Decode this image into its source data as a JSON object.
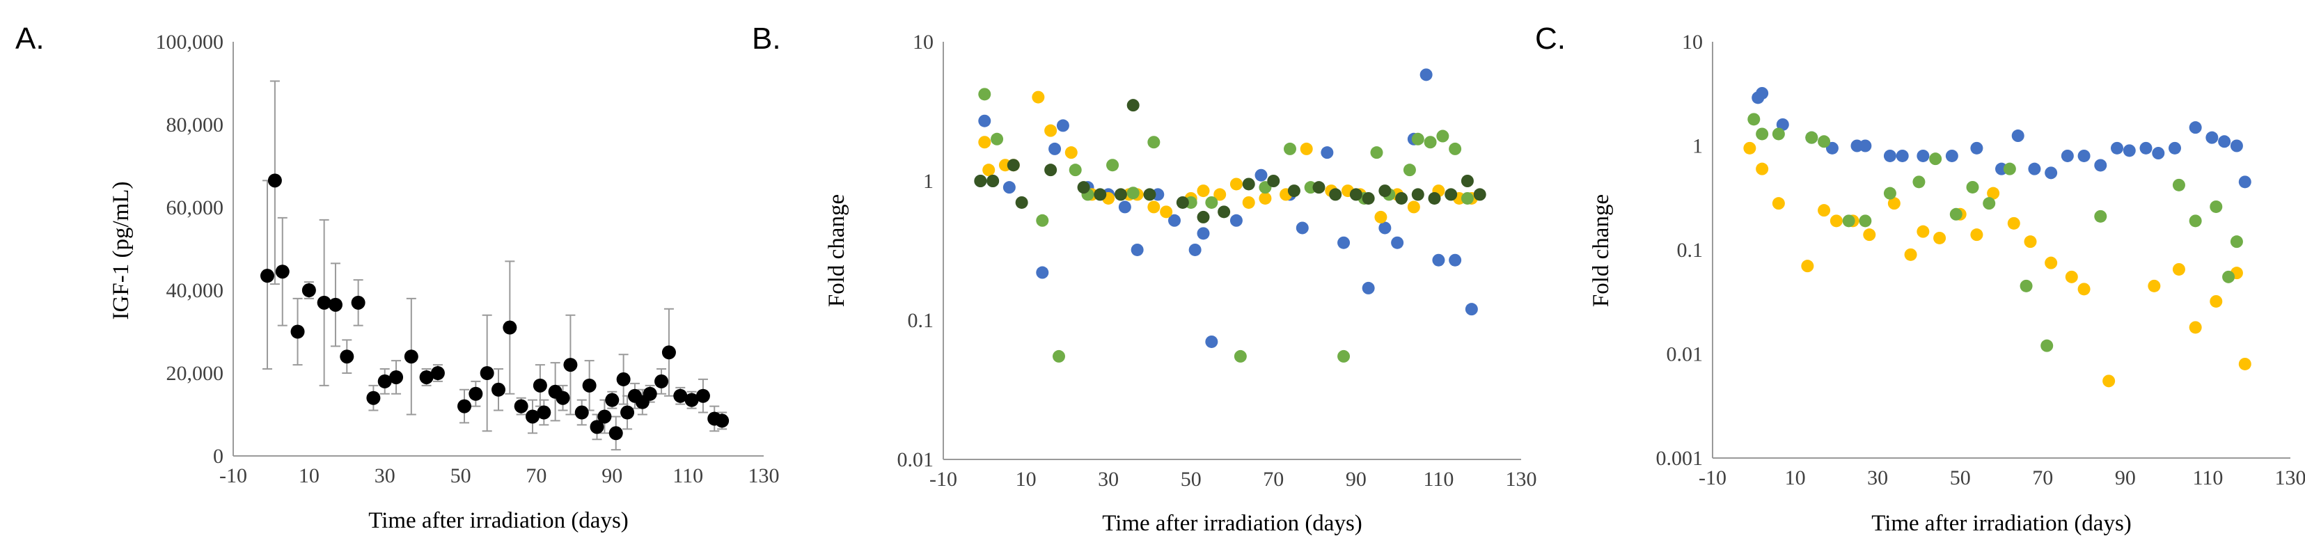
{
  "colors": {
    "black": "#000000",
    "blue": "#4472C4",
    "orange": "#FFC000",
    "green": "#70AD47",
    "darkgreen": "#375623"
  },
  "chart_data": [
    {
      "panel": "A.",
      "type": "scatter",
      "ylabel": "IGF-1 (pg/mL)",
      "xlabel": "Time after irradiation (days)",
      "xlim": [
        -10,
        130
      ],
      "ylim": [
        0,
        100000
      ],
      "xticks": [
        -10,
        10,
        30,
        50,
        70,
        90,
        110,
        130
      ],
      "yticks": [
        0,
        20000,
        40000,
        60000,
        80000,
        100000
      ],
      "ytick_labels": [
        "0",
        "20,000",
        "40,000",
        "60,000",
        "80,000",
        "100,000"
      ],
      "yscale": "linear",
      "series": [
        {
          "name": "IGF-1",
          "color": "#000000",
          "x": [
            -1,
            1,
            3,
            7,
            10,
            14,
            17,
            20,
            23,
            27,
            30,
            33,
            37,
            41,
            44,
            51,
            54,
            57,
            60,
            63,
            66,
            69,
            71,
            72,
            75,
            77,
            79,
            82,
            84,
            86,
            88,
            90,
            91,
            93,
            94,
            96,
            98,
            100,
            103,
            105,
            108,
            111,
            114,
            117,
            119
          ],
          "y": [
            43500,
            66500,
            44500,
            30000,
            40000,
            37000,
            36500,
            24000,
            37000,
            14000,
            18000,
            19000,
            24000,
            19000,
            20000,
            12000,
            15000,
            20000,
            16000,
            31000,
            12000,
            9500,
            17000,
            10500,
            15500,
            14000,
            22000,
            10500,
            17000,
            7000,
            9500,
            13500,
            5500,
            18500,
            10500,
            14500,
            13000,
            15000,
            18000,
            25000,
            14500,
            13500,
            14500,
            9000,
            8500
          ],
          "err_high": [
            23000,
            24000,
            13000,
            8000,
            2000,
            20000,
            10000,
            4000,
            5500,
            3000,
            3000,
            4000,
            14000,
            2000,
            2000,
            4000,
            3000,
            14000,
            5000,
            16000,
            2000,
            4000,
            5000,
            3000,
            7000,
            3000,
            12000,
            3000,
            6000,
            3000,
            4000,
            2000,
            4000,
            6000,
            4000,
            3000,
            3000,
            2000,
            3000,
            10500,
            2000,
            2000,
            4000,
            3000,
            2000
          ],
          "err_low": [
            22500,
            25000,
            13000,
            8000,
            2000,
            20000,
            10000,
            4000,
            5500,
            3000,
            3000,
            4000,
            14000,
            2000,
            2000,
            4000,
            3000,
            14000,
            5000,
            16000,
            2000,
            4000,
            5000,
            3000,
            7000,
            3000,
            12000,
            3000,
            6000,
            3000,
            4000,
            2000,
            4000,
            6000,
            4000,
            3000,
            3000,
            2000,
            3000,
            10500,
            2000,
            2000,
            4000,
            3000,
            2000
          ]
        }
      ]
    },
    {
      "panel": "B.",
      "type": "scatter",
      "ylabel": "Fold change",
      "xlabel": "Time after irradiation (days)",
      "xlim": [
        -10,
        130
      ],
      "ylim": [
        0.01,
        10
      ],
      "xticks": [
        -10,
        10,
        30,
        50,
        70,
        90,
        110,
        130
      ],
      "yticks": [
        0.01,
        0.1,
        1,
        10
      ],
      "ytick_labels": [
        "0.01",
        "0.1",
        "1",
        "10"
      ],
      "yscale": "log",
      "series": [
        {
          "name": "blue",
          "color": "#4472C4",
          "x": [
            -1,
            0,
            2,
            6,
            14,
            17,
            19,
            25,
            30,
            34,
            37,
            42,
            46,
            51,
            53,
            55,
            61,
            67,
            74,
            77,
            83,
            87,
            93,
            97,
            100,
            104,
            107,
            110,
            114,
            118
          ],
          "y": [
            1.0,
            2.7,
            1.0,
            0.9,
            0.22,
            1.7,
            2.5,
            0.9,
            0.8,
            0.65,
            0.32,
            0.8,
            0.52,
            0.32,
            0.42,
            0.07,
            0.52,
            1.1,
            0.8,
            0.46,
            1.6,
            0.36,
            0.17,
            0.46,
            0.36,
            2.0,
            5.8,
            0.27,
            0.27,
            0.12
          ]
        },
        {
          "name": "orange",
          "color": "#FFC000",
          "x": [
            0,
            1,
            5,
            7,
            13,
            16,
            21,
            26,
            30,
            35,
            37,
            41,
            44,
            50,
            53,
            57,
            61,
            64,
            68,
            73,
            78,
            84,
            88,
            91,
            96,
            100,
            104,
            110,
            115,
            118
          ],
          "y": [
            1.9,
            1.2,
            1.3,
            1.3,
            4.0,
            2.3,
            1.6,
            0.8,
            0.75,
            0.8,
            0.8,
            0.65,
            0.6,
            0.75,
            0.85,
            0.8,
            0.95,
            0.7,
            0.75,
            0.8,
            1.7,
            0.85,
            0.85,
            0.8,
            0.55,
            0.8,
            0.65,
            0.85,
            0.75,
            0.75
          ]
        },
        {
          "name": "green",
          "color": "#70AD47",
          "x": [
            0,
            3,
            14,
            18,
            22,
            25,
            31,
            36,
            41,
            50,
            55,
            62,
            68,
            74,
            79,
            87,
            92,
            95,
            98,
            103,
            105,
            108,
            111,
            114,
            117
          ],
          "y": [
            4.2,
            2.0,
            0.52,
            0.055,
            1.2,
            0.8,
            1.3,
            0.82,
            1.9,
            0.7,
            0.7,
            0.055,
            0.9,
            1.7,
            0.9,
            0.055,
            0.75,
            1.6,
            0.8,
            1.2,
            2.0,
            1.9,
            2.1,
            1.7,
            0.75
          ]
        },
        {
          "name": "darkgreen",
          "color": "#375623",
          "x": [
            -1,
            2,
            7,
            9,
            16,
            24,
            28,
            33,
            36,
            40,
            48,
            53,
            58,
            64,
            70,
            75,
            81,
            85,
            90,
            93,
            97,
            101,
            105,
            109,
            113,
            117,
            120
          ],
          "y": [
            1.0,
            1.0,
            1.3,
            0.7,
            1.2,
            0.9,
            0.8,
            0.8,
            3.5,
            0.8,
            0.7,
            0.55,
            0.6,
            0.95,
            1.0,
            0.85,
            0.9,
            0.8,
            0.8,
            0.75,
            0.85,
            0.75,
            0.8,
            0.75,
            0.8,
            1.0,
            0.8
          ]
        }
      ]
    },
    {
      "panel": "C.",
      "type": "scatter",
      "ylabel": "Fold change",
      "xlabel": "Time after irradiation (days)",
      "xlim": [
        -10,
        130
      ],
      "ylim": [
        0.001,
        10
      ],
      "xticks": [
        -10,
        10,
        30,
        50,
        70,
        90,
        110,
        130
      ],
      "yticks": [
        0.001,
        0.01,
        0.1,
        1,
        10
      ],
      "ytick_labels": [
        "0.001",
        "0.01",
        "0.1",
        "1",
        "10"
      ],
      "yscale": "log",
      "series": [
        {
          "name": "blue",
          "color": "#4472C4",
          "x": [
            1,
            2,
            7,
            14,
            19,
            25,
            27,
            33,
            36,
            41,
            48,
            54,
            60,
            64,
            68,
            72,
            76,
            80,
            84,
            88,
            91,
            95,
            98,
            102,
            107,
            111,
            114,
            117,
            119
          ],
          "y": [
            2.9,
            3.2,
            1.6,
            1.2,
            0.95,
            1.0,
            1.0,
            0.8,
            0.8,
            0.8,
            0.8,
            0.95,
            0.6,
            1.25,
            0.6,
            0.55,
            0.8,
            0.8,
            0.65,
            0.95,
            0.9,
            0.95,
            0.85,
            0.95,
            1.5,
            1.2,
            1.1,
            1.0,
            0.45
          ]
        },
        {
          "name": "orange",
          "color": "#FFC000",
          "x": [
            -1,
            2,
            6,
            13,
            17,
            20,
            24,
            28,
            34,
            38,
            41,
            45,
            50,
            54,
            58,
            63,
            67,
            72,
            77,
            80,
            86,
            97,
            103,
            107,
            112,
            117,
            119
          ],
          "y": [
            0.95,
            0.6,
            0.28,
            0.07,
            0.24,
            0.19,
            0.19,
            0.14,
            0.28,
            0.09,
            0.15,
            0.13,
            0.22,
            0.14,
            0.35,
            0.18,
            0.12,
            0.075,
            0.055,
            0.042,
            0.0055,
            0.045,
            0.065,
            0.018,
            0.032,
            0.06,
            0.008
          ]
        },
        {
          "name": "green",
          "color": "#70AD47",
          "x": [
            0,
            2,
            6,
            14,
            17,
            23,
            27,
            33,
            40,
            44,
            49,
            53,
            57,
            62,
            66,
            71,
            84,
            103,
            107,
            112,
            115,
            117
          ],
          "y": [
            1.8,
            1.3,
            1.3,
            1.2,
            1.1,
            0.19,
            0.19,
            0.35,
            0.45,
            0.75,
            0.22,
            0.4,
            0.28,
            0.6,
            0.045,
            0.012,
            0.21,
            0.42,
            0.19,
            0.26,
            0.055,
            0.12
          ]
        }
      ]
    }
  ]
}
